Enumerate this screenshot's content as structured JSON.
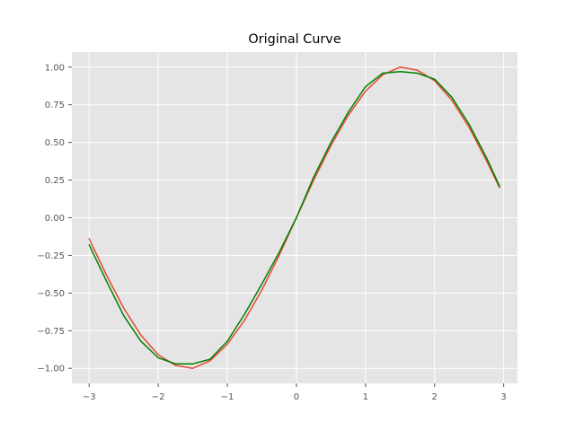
{
  "chart_data": {
    "type": "line",
    "title": "Original Curve",
    "xlabel": "",
    "ylabel": "",
    "xlim": [
      -3.25,
      3.2
    ],
    "ylim": [
      -1.1,
      1.1
    ],
    "grid": true,
    "legend": "none",
    "colors": {
      "background": "#e5e5e5",
      "grid": "#ffffff",
      "tick_text": "#555555"
    },
    "x_ticks": [
      {
        "value": -3,
        "label": "−3"
      },
      {
        "value": -2,
        "label": "−2"
      },
      {
        "value": -1,
        "label": "−1"
      },
      {
        "value": 0,
        "label": "0"
      },
      {
        "value": 1,
        "label": "1"
      },
      {
        "value": 2,
        "label": "2"
      },
      {
        "value": 3,
        "label": "3"
      }
    ],
    "y_ticks": [
      {
        "value": -1.0,
        "label": "−1.00"
      },
      {
        "value": -0.75,
        "label": "−0.75"
      },
      {
        "value": -0.5,
        "label": "−0.50"
      },
      {
        "value": -0.25,
        "label": "−0.25"
      },
      {
        "value": 0.0,
        "label": "0.00"
      },
      {
        "value": 0.25,
        "label": "0.25"
      },
      {
        "value": 0.5,
        "label": "0.50"
      },
      {
        "value": 0.75,
        "label": "0.75"
      },
      {
        "value": 1.0,
        "label": "1.00"
      }
    ],
    "series": [
      {
        "color": "#e24a33",
        "x": [
          -3.0,
          -2.75,
          -2.5,
          -2.25,
          -2.0,
          -1.75,
          -1.5,
          -1.25,
          -1.0,
          -0.75,
          -0.5,
          -0.25,
          0.0,
          0.25,
          0.5,
          0.75,
          1.0,
          1.25,
          1.5,
          1.75,
          2.0,
          2.25,
          2.5,
          2.75,
          2.94
        ],
        "y": [
          -0.14,
          -0.38,
          -0.6,
          -0.78,
          -0.91,
          -0.98,
          -1.0,
          -0.95,
          -0.84,
          -0.68,
          -0.48,
          -0.25,
          0.0,
          0.25,
          0.48,
          0.68,
          0.84,
          0.95,
          1.0,
          0.98,
          0.91,
          0.78,
          0.6,
          0.38,
          0.2
        ]
      },
      {
        "color": "#008000",
        "x": [
          -3.0,
          -2.75,
          -2.5,
          -2.25,
          -2.0,
          -1.75,
          -1.5,
          -1.25,
          -1.0,
          -0.75,
          -0.5,
          -0.25,
          0.0,
          0.25,
          0.5,
          0.75,
          1.0,
          1.25,
          1.5,
          1.75,
          2.0,
          2.25,
          2.5,
          2.75,
          2.94
        ],
        "y": [
          -0.18,
          -0.42,
          -0.65,
          -0.82,
          -0.93,
          -0.97,
          -0.97,
          -0.94,
          -0.82,
          -0.64,
          -0.44,
          -0.23,
          0.0,
          0.27,
          0.5,
          0.7,
          0.87,
          0.96,
          0.97,
          0.96,
          0.92,
          0.8,
          0.62,
          0.4,
          0.21
        ]
      }
    ]
  }
}
